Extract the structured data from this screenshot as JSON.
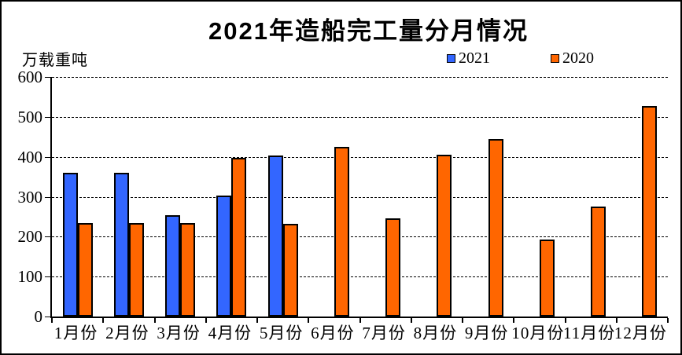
{
  "title": "2021年造船完工量分月情况",
  "unit_label": "万载重吨",
  "legend": [
    {
      "label": "2021",
      "color": "#3366FF"
    },
    {
      "label": "2020",
      "color": "#FF6600"
    }
  ],
  "colors": {
    "series_2021": "#3366FF",
    "series_2020": "#FF6600",
    "bar_border": "#000000",
    "axis": "#000000",
    "background": "#FFFFFF"
  },
  "chart_data": {
    "type": "bar",
    "title": "2021年造船完工量分月情况",
    "ylabel": "万载重吨",
    "categories": [
      "1月份",
      "2月份",
      "3月份",
      "4月份",
      "5月份",
      "6月份",
      "7月份",
      "8月份",
      "9月份",
      "10月份",
      "11月份",
      "12月份"
    ],
    "series": [
      {
        "name": "2021",
        "color": "#3366FF",
        "values": [
          361,
          361,
          254,
          302,
          404,
          null,
          null,
          null,
          null,
          null,
          null,
          null
        ]
      },
      {
        "name": "2020",
        "color": "#FF6600",
        "values": [
          234,
          234,
          234,
          398,
          232,
          425,
          246,
          406,
          445,
          193,
          275,
          528
        ]
      }
    ],
    "ylim": [
      0,
      600
    ],
    "yticks": [
      0,
      100,
      200,
      300,
      400,
      500,
      600
    ],
    "grid": "horizontal-dashed",
    "legend_position": "top"
  }
}
